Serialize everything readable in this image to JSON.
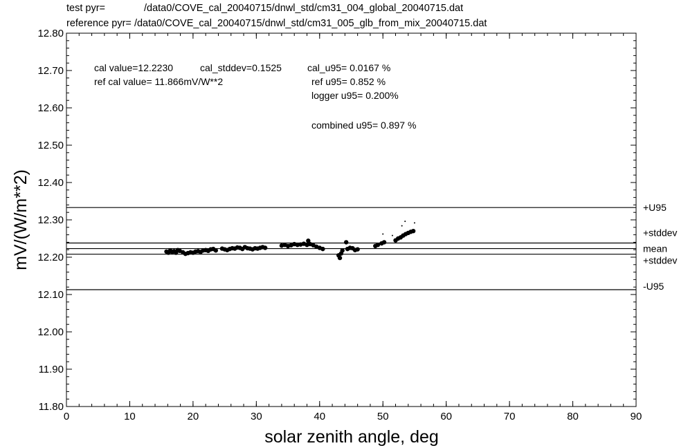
{
  "header": {
    "test_label": "test pyr=",
    "test_path": "/data0/COVE_cal_20040715/dnwl_std/cm31_004_global_20040715.dat",
    "ref_label": "reference pyr=",
    "ref_path": "/data0/COVE_cal_20040715/dnwl_std/cm31_005_glb_from_mix_20040715.dat"
  },
  "annotations": {
    "cal_value": "cal value=12.2230",
    "cal_stddev": "cal_stddev=0.1525",
    "cal_u95": "cal_u95=   0.0167 %",
    "ref_cal_value": "ref cal value= 11.866mV/W**2",
    "ref_u95": "ref u95=  0.852 %",
    "logger_u95": "logger u95= 0.200%",
    "combined_u95": "combined u95=  0.897 %"
  },
  "chart_data": {
    "type": "scatter",
    "xlabel": "solar zenith angle, deg",
    "ylabel": "mV/(W/m**2)",
    "xlim": [
      0,
      90
    ],
    "ylim": [
      11.8,
      12.8
    ],
    "x_ticks": [
      "0",
      "10",
      "20",
      "30",
      "40",
      "50",
      "60",
      "70",
      "80",
      "90"
    ],
    "y_ticks": [
      "11.80",
      "11.90",
      "12.00",
      "12.10",
      "12.20",
      "12.30",
      "12.40",
      "12.50",
      "12.60",
      "12.70",
      "12.80"
    ],
    "grid": false,
    "reference_lines": [
      {
        "name": "+U95",
        "y": 12.333
      },
      {
        "name": "+stddev",
        "y": 12.238
      },
      {
        "name": "mean",
        "y": 12.223
      },
      {
        "name": "+stddev",
        "y": 12.208
      },
      {
        "name": "-U95",
        "y": 12.113
      }
    ],
    "series": [
      {
        "points": [
          [
            15.8,
            12.215
          ],
          [
            16.1,
            12.212
          ],
          [
            16.4,
            12.218
          ],
          [
            16.7,
            12.214
          ],
          [
            17.0,
            12.216
          ],
          [
            17.3,
            12.212
          ],
          [
            17.6,
            12.219
          ],
          [
            17.9,
            12.217
          ],
          [
            18.4,
            12.213
          ],
          [
            18.8,
            12.209
          ],
          [
            19.2,
            12.211
          ],
          [
            19.6,
            12.213
          ],
          [
            20.0,
            12.212
          ],
          [
            20.4,
            12.215
          ],
          [
            20.8,
            12.216
          ],
          [
            21.2,
            12.214
          ],
          [
            21.6,
            12.218
          ],
          [
            22.0,
            12.219
          ],
          [
            22.4,
            12.217
          ],
          [
            22.8,
            12.221
          ],
          [
            23.2,
            12.222
          ],
          [
            23.6,
            12.218
          ],
          [
            24.6,
            12.223
          ],
          [
            25.0,
            12.221
          ],
          [
            25.4,
            12.219
          ],
          [
            25.8,
            12.222
          ],
          [
            26.2,
            12.224
          ],
          [
            26.6,
            12.223
          ],
          [
            27.0,
            12.226
          ],
          [
            27.4,
            12.225
          ],
          [
            27.8,
            12.222
          ],
          [
            28.2,
            12.227
          ],
          [
            28.6,
            12.224
          ],
          [
            29.0,
            12.223
          ],
          [
            29.4,
            12.221
          ],
          [
            29.8,
            12.224
          ],
          [
            30.2,
            12.223
          ],
          [
            30.6,
            12.225
          ],
          [
            31.0,
            12.227
          ],
          [
            31.4,
            12.225
          ],
          [
            34.0,
            12.231
          ],
          [
            34.5,
            12.233
          ],
          [
            35.0,
            12.23
          ],
          [
            35.5,
            12.232
          ],
          [
            36.0,
            12.235
          ],
          [
            36.5,
            12.233
          ],
          [
            37.0,
            12.234
          ],
          [
            37.5,
            12.236
          ],
          [
            38.0,
            12.233
          ],
          [
            38.5,
            12.235
          ],
          [
            39.0,
            12.232
          ],
          [
            39.5,
            12.228
          ],
          [
            40.0,
            12.225
          ],
          [
            40.5,
            12.222
          ],
          [
            43.0,
            12.205
          ],
          [
            43.2,
            12.198
          ],
          [
            43.4,
            12.21
          ],
          [
            43.6,
            12.218
          ],
          [
            44.4,
            12.222
          ],
          [
            44.8,
            12.225
          ],
          [
            45.2,
            12.224
          ],
          [
            45.6,
            12.219
          ],
          [
            46.0,
            12.221
          ],
          [
            48.8,
            12.23
          ],
          [
            49.2,
            12.233
          ],
          [
            49.8,
            12.237
          ],
          [
            50.2,
            12.24
          ],
          [
            52.0,
            12.245
          ],
          [
            52.4,
            12.25
          ],
          [
            52.8,
            12.253
          ],
          [
            53.2,
            12.258
          ],
          [
            53.6,
            12.262
          ],
          [
            54.0,
            12.265
          ],
          [
            54.4,
            12.268
          ],
          [
            54.8,
            12.27
          ],
          [
            50.0,
            12.262
          ],
          [
            51.5,
            12.258
          ],
          [
            53.0,
            12.284
          ],
          [
            53.5,
            12.296
          ],
          [
            55.0,
            12.292
          ],
          [
            44.2,
            12.24
          ],
          [
            38.2,
            12.244
          ]
        ]
      }
    ]
  }
}
